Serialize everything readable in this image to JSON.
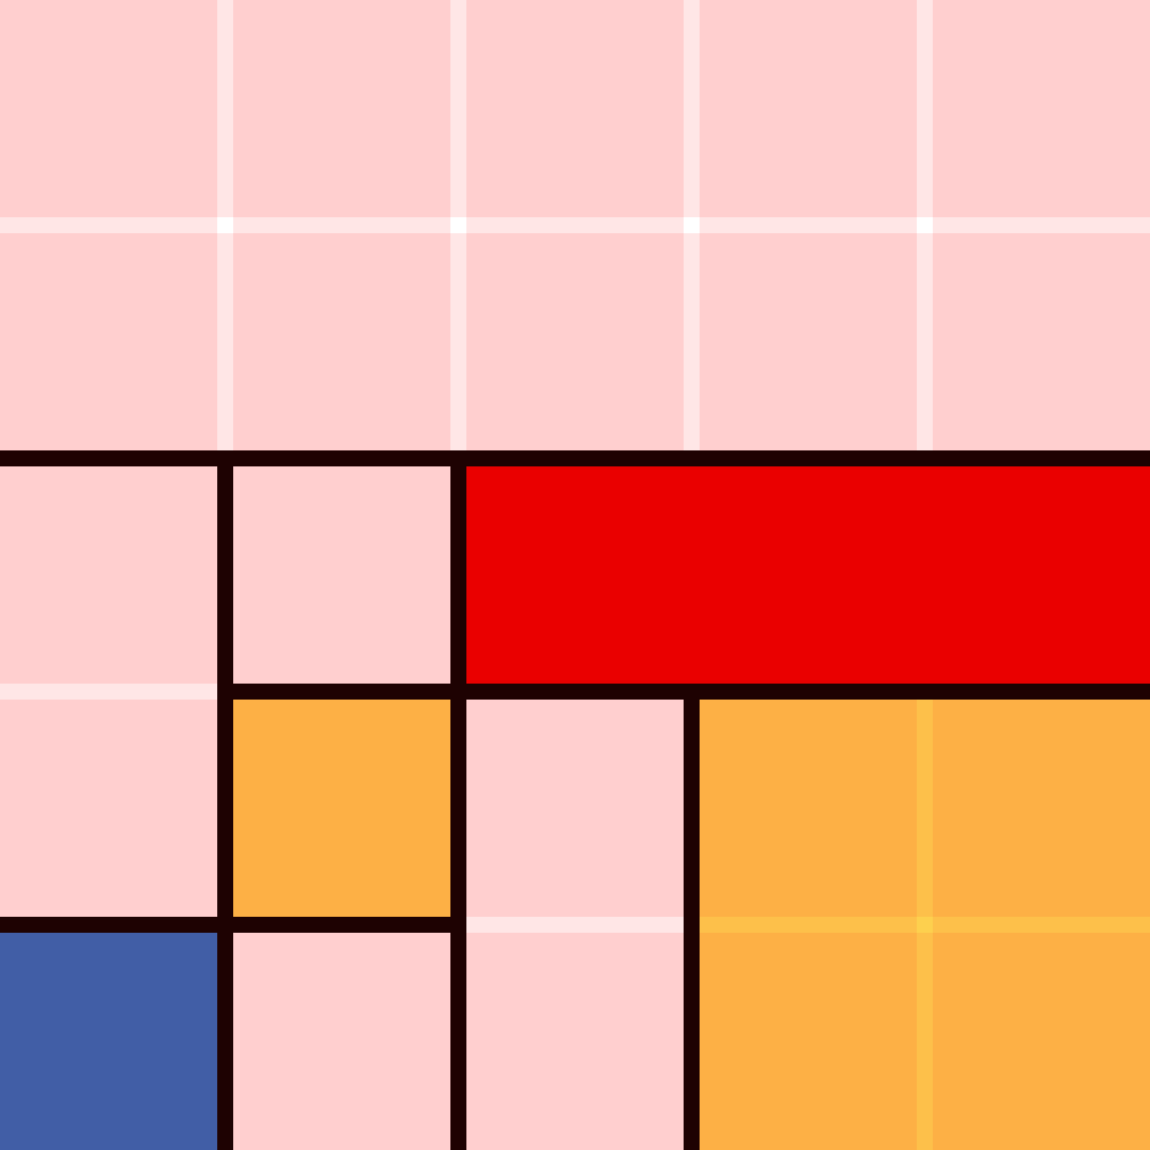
{
  "board": {
    "rows": 5,
    "cols": 5,
    "colors": {
      "empty": "#ffcfcf",
      "gridline_light": "#ffe6e6",
      "wall": "#1e0202",
      "red": "#ea0000",
      "orange": "#fdb045",
      "orange_gridline": "#fdc04a",
      "blue": "#415ea6"
    },
    "cells": [
      [
        "empty",
        "empty",
        "empty",
        "empty",
        "empty"
      ],
      [
        "empty",
        "empty",
        "empty",
        "empty",
        "empty"
      ],
      [
        "empty",
        "empty",
        "red",
        "red",
        "red"
      ],
      [
        "empty",
        "orange",
        "empty",
        "orange",
        "orange"
      ],
      [
        "blue",
        "empty",
        "empty",
        "orange",
        "orange"
      ]
    ],
    "walls": [
      {
        "orientation": "h",
        "line": 2,
        "from": 0,
        "to": 5
      },
      {
        "orientation": "h",
        "line": 3,
        "from": 1,
        "to": 5
      },
      {
        "orientation": "h",
        "line": 4,
        "from": 0,
        "to": 2
      },
      {
        "orientation": "v",
        "line": 1,
        "from": 2,
        "to": 5
      },
      {
        "orientation": "v",
        "line": 2,
        "from": 2,
        "to": 5
      },
      {
        "orientation": "v",
        "line": 3,
        "from": 3,
        "to": 5
      }
    ]
  }
}
